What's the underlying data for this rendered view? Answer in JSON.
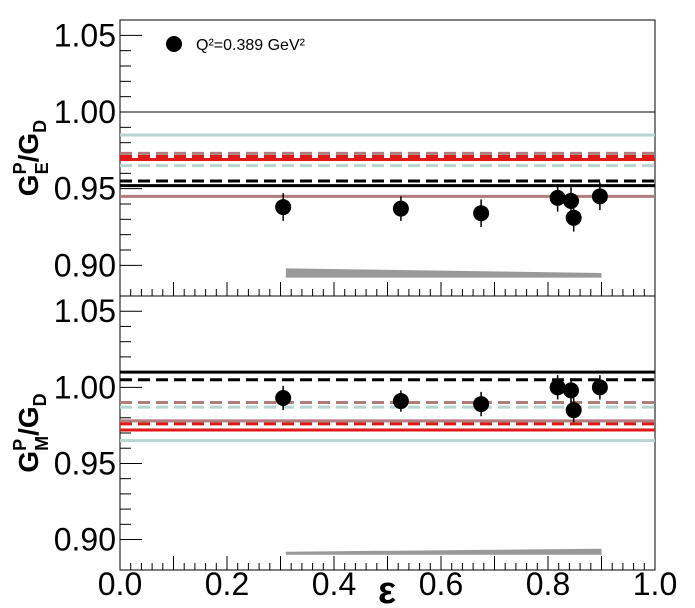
{
  "chart_data": {
    "type": "scatter",
    "x_label": "ε",
    "x_range": [
      0.0,
      1.0
    ],
    "x_ticks": [
      "0.0",
      "0.2",
      "0.4",
      "0.6",
      "0.8",
      "1.0"
    ],
    "legend": {
      "marker": "filled-circle",
      "label": "Q²=0.389 GeV²",
      "color": "#000000"
    },
    "panels": [
      {
        "id": "top",
        "y_label": "G_E^P/G_D",
        "y_label_base": "G",
        "y_label_sup": "P",
        "y_label_sub": "E",
        "y_label_den_base": "/G",
        "y_label_den_sub": "D",
        "y_range": [
          0.88,
          1.06
        ],
        "y_ticks": [
          "0.90",
          "0.95",
          "1.00",
          "1.05"
        ],
        "points": [
          {
            "x": 0.305,
            "y": 0.938,
            "err": 0.009
          },
          {
            "x": 0.525,
            "y": 0.937,
            "err": 0.008
          },
          {
            "x": 0.675,
            "y": 0.934,
            "err": 0.009
          },
          {
            "x": 0.818,
            "y": 0.944,
            "err": 0.009
          },
          {
            "x": 0.843,
            "y": 0.942,
            "err": 0.009
          },
          {
            "x": 0.848,
            "y": 0.931,
            "err": 0.009
          },
          {
            "x": 0.897,
            "y": 0.945,
            "err": 0.009
          }
        ],
        "hlines": [
          {
            "y": 1.0,
            "color": "#000000",
            "dash": "solid",
            "width": 1
          },
          {
            "y": 0.985,
            "color": "#b7d6d1",
            "dash": "solid",
            "width": 3
          },
          {
            "y": 0.973,
            "color": "#b07c7c",
            "dash": "dashed",
            "width": 3
          },
          {
            "y": 0.971,
            "color": "#e01818",
            "dash": "dashed",
            "width": 3
          },
          {
            "y": 0.969,
            "color": "#e01818",
            "dash": "solid",
            "width": 3
          },
          {
            "y": 0.965,
            "color": "#b7d6d1",
            "dash": "dashed",
            "width": 3
          },
          {
            "y": 0.955,
            "color": "#000000",
            "dash": "dashed",
            "width": 3
          },
          {
            "y": 0.952,
            "color": "#000000",
            "dash": "solid",
            "width": 3
          },
          {
            "y": 0.945,
            "color": "#b07c7c",
            "dash": "solid",
            "width": 3
          }
        ],
        "systematic_band": {
          "x": [
            0.31,
            0.9
          ],
          "y_low": [
            0.892,
            0.892
          ],
          "y_high": [
            0.898,
            0.895
          ],
          "color": "#999999"
        }
      },
      {
        "id": "bottom",
        "y_label": "G_M^P/G_D",
        "y_label_base": "G",
        "y_label_sup": "P",
        "y_label_sub": "M",
        "y_label_den_base": "/G",
        "y_label_den_sub": "D",
        "y_range": [
          0.88,
          1.06
        ],
        "y_ticks": [
          "0.90",
          "0.95",
          "1.00",
          "1.05"
        ],
        "points": [
          {
            "x": 0.305,
            "y": 0.993,
            "err": 0.008
          },
          {
            "x": 0.525,
            "y": 0.991,
            "err": 0.007
          },
          {
            "x": 0.675,
            "y": 0.989,
            "err": 0.008
          },
          {
            "x": 0.818,
            "y": 1.0,
            "err": 0.008
          },
          {
            "x": 0.843,
            "y": 0.998,
            "err": 0.008
          },
          {
            "x": 0.848,
            "y": 0.985,
            "err": 0.008
          },
          {
            "x": 0.897,
            "y": 1.0,
            "err": 0.008
          }
        ],
        "hlines": [
          {
            "y": 1.01,
            "color": "#000000",
            "dash": "solid",
            "width": 3
          },
          {
            "y": 1.005,
            "color": "#000000",
            "dash": "dashed",
            "width": 3
          },
          {
            "y": 0.99,
            "color": "#b07c7c",
            "dash": "dashed",
            "width": 3
          },
          {
            "y": 0.987,
            "color": "#b7d6d1",
            "dash": "dashed",
            "width": 3
          },
          {
            "y": 0.978,
            "color": "#b07c7c",
            "dash": "solid",
            "width": 3
          },
          {
            "y": 0.976,
            "color": "#e01818",
            "dash": "dashed",
            "width": 3
          },
          {
            "y": 0.972,
            "color": "#e01818",
            "dash": "solid",
            "width": 3
          },
          {
            "y": 0.965,
            "color": "#b7d6d1",
            "dash": "solid",
            "width": 3
          }
        ],
        "systematic_band": {
          "x": [
            0.31,
            0.9
          ],
          "y_low": [
            0.89,
            0.89
          ],
          "y_high": [
            0.892,
            0.894
          ],
          "color": "#999999"
        }
      }
    ]
  }
}
